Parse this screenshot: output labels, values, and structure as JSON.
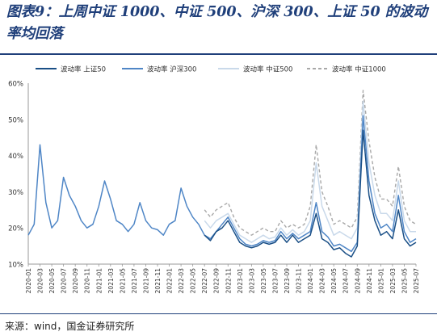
{
  "title": "图表9：上周中证 1000、中证 500、沪深 300、上证 50 的波动率均回落",
  "source": "来源：wind，国金证券研究所",
  "chart_data": {
    "type": "line",
    "title": "图表9：上周中证 1000、中证 500、沪深 300、上证 50 的波动率均回落",
    "xlabel": "",
    "ylabel": "",
    "y_unit": "%",
    "ylim": [
      10,
      60
    ],
    "yticks": [
      "10%",
      "20%",
      "30%",
      "40%",
      "50%",
      "60%"
    ],
    "x_range": [
      "2020-01",
      "2025-07"
    ],
    "xticks": [
      "2020-01",
      "2020-03",
      "2020-05",
      "2020-07",
      "2020-09",
      "2020-11",
      "2021-01",
      "2021-03",
      "2021-05",
      "2021-07",
      "2021-09",
      "2021-11",
      "2022-01",
      "2022-03",
      "2022-05",
      "2022-07",
      "2022-09",
      "2022-11",
      "2023-01",
      "2023-03",
      "2023-05",
      "2023-07",
      "2023-09",
      "2023-11",
      "2024-01",
      "2024-03",
      "2024-05",
      "2024-07",
      "2024-09",
      "2024-11",
      "2025-01",
      "2025-03",
      "2025-05",
      "2025-07"
    ],
    "grid": false,
    "legend_position": "top",
    "series": [
      {
        "name": "波动率 上证50",
        "color": "#1a4f86",
        "style": "solid",
        "start": "2022-07",
        "points": [
          [
            "2022-07",
            18
          ],
          [
            "2022-08",
            16.5
          ],
          [
            "2022-09",
            19
          ],
          [
            "2022-10",
            20
          ],
          [
            "2022-11",
            22
          ],
          [
            "2022-12",
            19
          ],
          [
            "2023-01",
            16
          ],
          [
            "2023-02",
            15
          ],
          [
            "2023-03",
            14.5
          ],
          [
            "2023-04",
            15
          ],
          [
            "2023-05",
            16
          ],
          [
            "2023-06",
            15.5
          ],
          [
            "2023-07",
            16
          ],
          [
            "2023-08",
            18
          ],
          [
            "2023-09",
            16
          ],
          [
            "2023-10",
            18
          ],
          [
            "2023-11",
            16
          ],
          [
            "2023-12",
            17
          ],
          [
            "2024-01",
            18
          ],
          [
            "2024-02",
            24
          ],
          [
            "2024-03",
            17
          ],
          [
            "2024-04",
            16
          ],
          [
            "2024-05",
            14
          ],
          [
            "2024-06",
            14.5
          ],
          [
            "2024-07",
            13
          ],
          [
            "2024-08",
            12
          ],
          [
            "2024-09",
            15
          ],
          [
            "2024-10",
            47
          ],
          [
            "2024-11",
            29
          ],
          [
            "2024-12",
            22
          ],
          [
            "2025-01",
            18
          ],
          [
            "2025-02",
            19
          ],
          [
            "2025-03",
            17
          ],
          [
            "2025-04",
            25
          ],
          [
            "2025-05",
            17
          ],
          [
            "2025-06",
            15
          ],
          [
            "2025-07",
            16
          ]
        ]
      },
      {
        "name": "波动率 沪深300",
        "color": "#4f86c6",
        "style": "solid",
        "start": "2020-01",
        "points": [
          [
            "2020-01",
            18
          ],
          [
            "2020-02",
            21
          ],
          [
            "2020-03",
            43
          ],
          [
            "2020-04",
            27
          ],
          [
            "2020-05",
            20
          ],
          [
            "2020-06",
            22
          ],
          [
            "2020-07",
            34
          ],
          [
            "2020-08",
            29
          ],
          [
            "2020-09",
            26
          ],
          [
            "2020-10",
            22
          ],
          [
            "2020-11",
            20
          ],
          [
            "2020-12",
            21
          ],
          [
            "2021-01",
            26
          ],
          [
            "2021-02",
            33
          ],
          [
            "2021-03",
            28
          ],
          [
            "2021-04",
            22
          ],
          [
            "2021-05",
            21
          ],
          [
            "2021-06",
            19
          ],
          [
            "2021-07",
            21
          ],
          [
            "2021-08",
            27
          ],
          [
            "2021-09",
            22
          ],
          [
            "2021-10",
            20
          ],
          [
            "2021-11",
            19.5
          ],
          [
            "2021-12",
            18
          ],
          [
            "2022-01",
            21
          ],
          [
            "2022-02",
            22
          ],
          [
            "2022-03",
            31
          ],
          [
            "2022-04",
            26
          ],
          [
            "2022-05",
            23
          ],
          [
            "2022-06",
            21
          ],
          [
            "2022-07",
            18
          ],
          [
            "2022-08",
            17
          ],
          [
            "2022-09",
            19
          ],
          [
            "2022-10",
            21
          ],
          [
            "2022-11",
            23
          ],
          [
            "2022-12",
            20
          ],
          [
            "2023-01",
            17
          ],
          [
            "2023-02",
            15.5
          ],
          [
            "2023-03",
            15
          ],
          [
            "2023-04",
            15.5
          ],
          [
            "2023-05",
            16.5
          ],
          [
            "2023-06",
            16
          ],
          [
            "2023-07",
            16.5
          ],
          [
            "2023-08",
            19
          ],
          [
            "2023-09",
            17
          ],
          [
            "2023-10",
            18.5
          ],
          [
            "2023-11",
            17
          ],
          [
            "2023-12",
            18
          ],
          [
            "2024-01",
            19
          ],
          [
            "2024-02",
            27
          ],
          [
            "2024-03",
            19
          ],
          [
            "2024-04",
            17.5
          ],
          [
            "2024-05",
            15
          ],
          [
            "2024-06",
            15.5
          ],
          [
            "2024-07",
            14.5
          ],
          [
            "2024-08",
            13.5
          ],
          [
            "2024-09",
            16
          ],
          [
            "2024-10",
            51
          ],
          [
            "2024-11",
            33
          ],
          [
            "2024-12",
            24
          ],
          [
            "2025-01",
            20
          ],
          [
            "2025-02",
            21
          ],
          [
            "2025-03",
            19
          ],
          [
            "2025-04",
            29
          ],
          [
            "2025-05",
            19
          ],
          [
            "2025-06",
            16
          ],
          [
            "2025-07",
            17
          ]
        ]
      },
      {
        "name": "波动率 中证500",
        "color": "#c9d9ea",
        "style": "solid",
        "start": "2022-07",
        "points": [
          [
            "2022-07",
            22
          ],
          [
            "2022-08",
            20
          ],
          [
            "2022-09",
            22
          ],
          [
            "2022-10",
            23
          ],
          [
            "2022-11",
            24
          ],
          [
            "2022-12",
            21
          ],
          [
            "2023-01",
            18
          ],
          [
            "2023-02",
            17
          ],
          [
            "2023-03",
            16
          ],
          [
            "2023-04",
            17
          ],
          [
            "2023-05",
            18
          ],
          [
            "2023-06",
            17
          ],
          [
            "2023-07",
            17.5
          ],
          [
            "2023-08",
            20
          ],
          [
            "2023-09",
            18
          ],
          [
            "2023-10",
            19.5
          ],
          [
            "2023-11",
            18
          ],
          [
            "2023-12",
            19
          ],
          [
            "2024-01",
            22
          ],
          [
            "2024-02",
            38
          ],
          [
            "2024-03",
            26
          ],
          [
            "2024-04",
            22
          ],
          [
            "2024-05",
            18
          ],
          [
            "2024-06",
            19
          ],
          [
            "2024-07",
            18
          ],
          [
            "2024-08",
            17
          ],
          [
            "2024-09",
            20
          ],
          [
            "2024-10",
            55
          ],
          [
            "2024-11",
            38
          ],
          [
            "2024-12",
            29
          ],
          [
            "2025-01",
            24
          ],
          [
            "2025-02",
            24
          ],
          [
            "2025-03",
            22
          ],
          [
            "2025-04",
            33
          ],
          [
            "2025-05",
            22
          ],
          [
            "2025-06",
            19
          ],
          [
            "2025-07",
            19
          ]
        ]
      },
      {
        "name": "波动率 中证1000",
        "color": "#a8a8a8",
        "style": "dashed",
        "start": "2022-07",
        "points": [
          [
            "2022-07",
            25
          ],
          [
            "2022-08",
            23
          ],
          [
            "2022-09",
            25
          ],
          [
            "2022-10",
            26
          ],
          [
            "2022-11",
            27
          ],
          [
            "2022-12",
            23
          ],
          [
            "2023-01",
            20
          ],
          [
            "2023-02",
            19
          ],
          [
            "2023-03",
            18
          ],
          [
            "2023-04",
            19
          ],
          [
            "2023-05",
            20
          ],
          [
            "2023-06",
            19
          ],
          [
            "2023-07",
            19
          ],
          [
            "2023-08",
            22
          ],
          [
            "2023-09",
            20
          ],
          [
            "2023-10",
            21
          ],
          [
            "2023-11",
            20
          ],
          [
            "2023-12",
            21
          ],
          [
            "2024-01",
            26
          ],
          [
            "2024-02",
            43
          ],
          [
            "2024-03",
            30
          ],
          [
            "2024-04",
            26
          ],
          [
            "2024-05",
            21
          ],
          [
            "2024-06",
            22
          ],
          [
            "2024-07",
            21
          ],
          [
            "2024-08",
            20
          ],
          [
            "2024-09",
            23
          ],
          [
            "2024-10",
            58
          ],
          [
            "2024-11",
            44
          ],
          [
            "2024-12",
            34
          ],
          [
            "2025-01",
            28
          ],
          [
            "2025-02",
            28
          ],
          [
            "2025-03",
            26
          ],
          [
            "2025-04",
            37
          ],
          [
            "2025-05",
            26
          ],
          [
            "2025-06",
            22
          ],
          [
            "2025-07",
            21
          ]
        ]
      }
    ]
  }
}
